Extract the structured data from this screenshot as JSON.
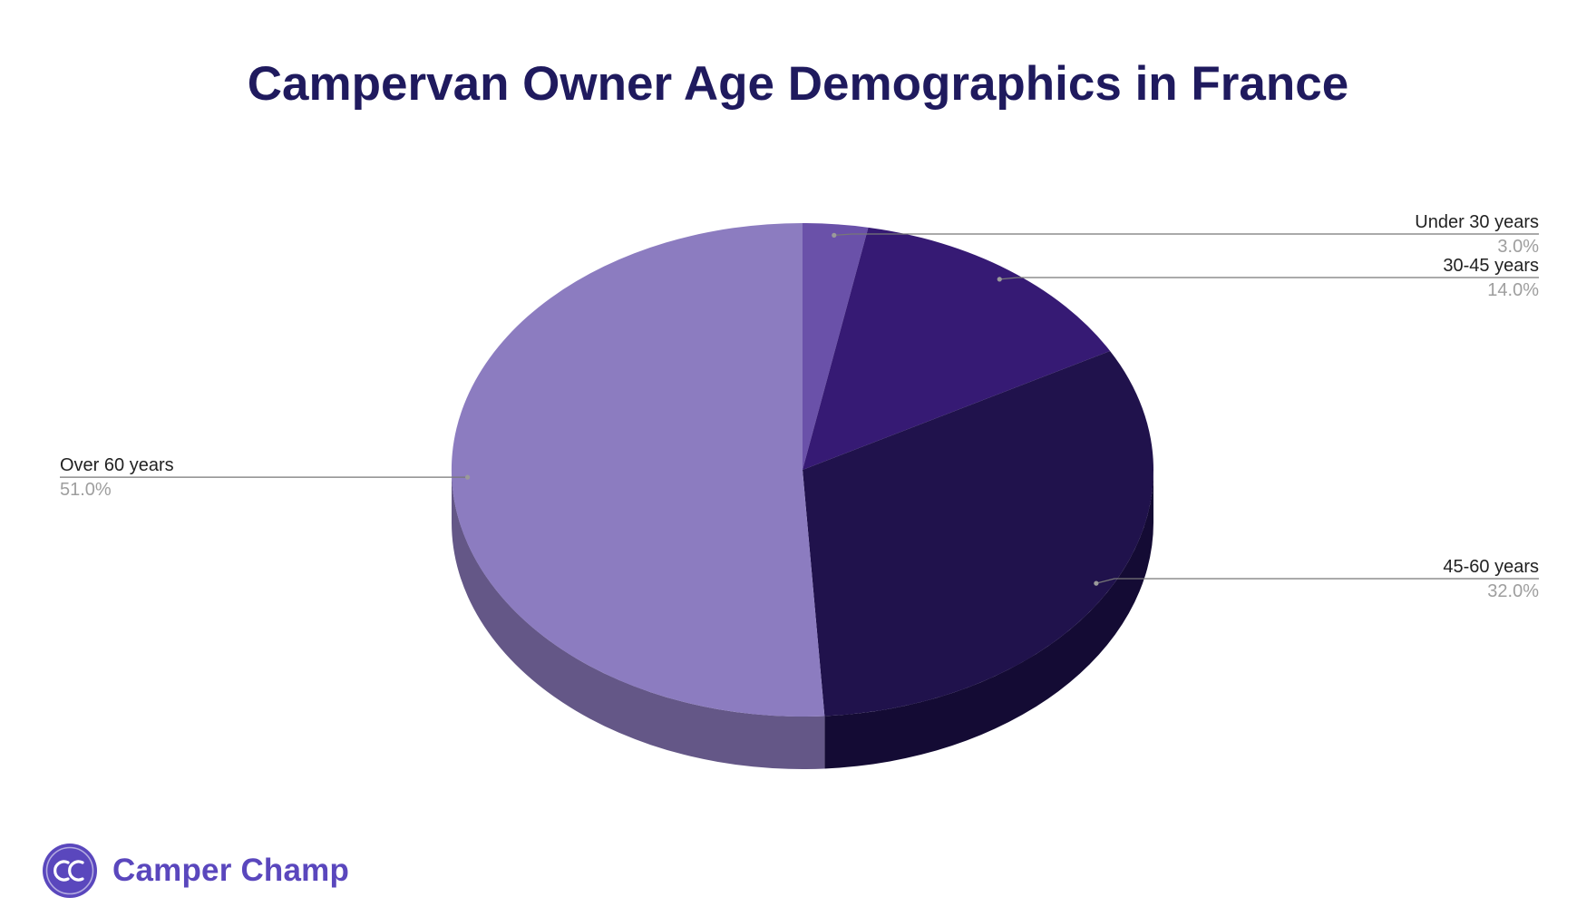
{
  "chart_data": {
    "type": "pie",
    "style": "3d",
    "title": "Campervan Owner Age Demographics in France",
    "slices": [
      {
        "label": "Under 30 years",
        "value": 3.0,
        "display": "3.0%",
        "color": "#6a51a9",
        "side_color": "#4c3a7a"
      },
      {
        "label": "30-45 years",
        "value": 14.0,
        "display": "14.0%",
        "color": "#361a74",
        "side_color": "#24114e"
      },
      {
        "label": "45-60 years",
        "value": 32.0,
        "display": "32.0%",
        "color": "#20124c",
        "side_color": "#140b34"
      },
      {
        "label": "Over 60 years",
        "value": 51.0,
        "display": "51.0%",
        "color": "#8c7cc0",
        "side_color": "#645787"
      }
    ],
    "start_angle_deg": 0,
    "direction": "clockwise",
    "legend": "none",
    "label_placement": "outside-with-leader-lines"
  },
  "brand": {
    "logo_text": "CC",
    "name": "Camper Champ",
    "color": "#5a47bd"
  }
}
